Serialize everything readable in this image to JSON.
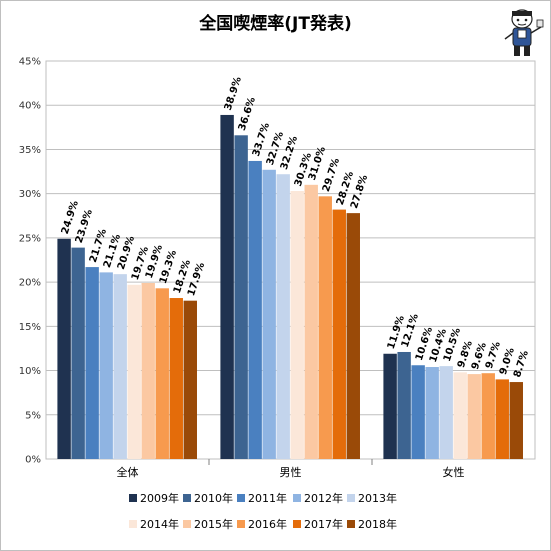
{
  "chart_data": {
    "type": "bar",
    "title": "全国喫煙率(JT発表)",
    "categories": [
      "全体",
      "男性",
      "女性"
    ],
    "ylim": [
      0,
      45
    ],
    "yticks": [
      "0%",
      "5%",
      "10%",
      "15%",
      "20%",
      "25%",
      "30%",
      "35%",
      "40%",
      "45%"
    ],
    "grid": true,
    "legend_position": "bottom",
    "series": [
      {
        "name": "2009年",
        "values": [
          24.9,
          38.9,
          11.9
        ],
        "labels": [
          "24.9%",
          "38.9%",
          "11.9%"
        ],
        "color": "#1f3250"
      },
      {
        "name": "2010年",
        "values": [
          23.9,
          36.6,
          12.1
        ],
        "labels": [
          "23.9%",
          "36.6%",
          "12.1%"
        ],
        "color": "#3d6491"
      },
      {
        "name": "2011年",
        "values": [
          21.7,
          33.7,
          10.6
        ],
        "labels": [
          "21.7%",
          "33.7%",
          "10.6%"
        ],
        "color": "#4a80c0"
      },
      {
        "name": "2012年",
        "values": [
          21.1,
          32.7,
          10.4
        ],
        "labels": [
          "21.1%",
          "32.7%",
          "10.4%"
        ],
        "color": "#8fb4e2"
      },
      {
        "name": "2013年",
        "values": [
          20.9,
          32.2,
          10.5
        ],
        "labels": [
          "20.9%",
          "32.2%",
          "10.5%"
        ],
        "color": "#c3d4ec"
      },
      {
        "name": "2014年",
        "values": [
          19.7,
          30.3,
          9.8
        ],
        "labels": [
          "19.7%",
          "30.3%",
          "9.8%"
        ],
        "color": "#fbe7d9"
      },
      {
        "name": "2015年",
        "values": [
          19.9,
          31.0,
          9.6
        ],
        "labels": [
          "19.9%",
          "31.0%",
          "9.6%"
        ],
        "color": "#fbc8a2"
      },
      {
        "name": "2016年",
        "values": [
          19.3,
          29.7,
          9.7
        ],
        "labels": [
          "19.3%",
          "29.7%",
          "9.7%"
        ],
        "color": "#f79a4e"
      },
      {
        "name": "2017年",
        "values": [
          18.2,
          28.2,
          9.0
        ],
        "labels": [
          "18.2%",
          "28.2%",
          "9.0%"
        ],
        "color": "#e46c0a"
      },
      {
        "name": "2018年",
        "values": [
          17.9,
          27.8,
          8.7
        ],
        "labels": [
          "17.9%",
          "27.8%",
          "8.7%"
        ],
        "color": "#9a4a08"
      }
    ]
  }
}
